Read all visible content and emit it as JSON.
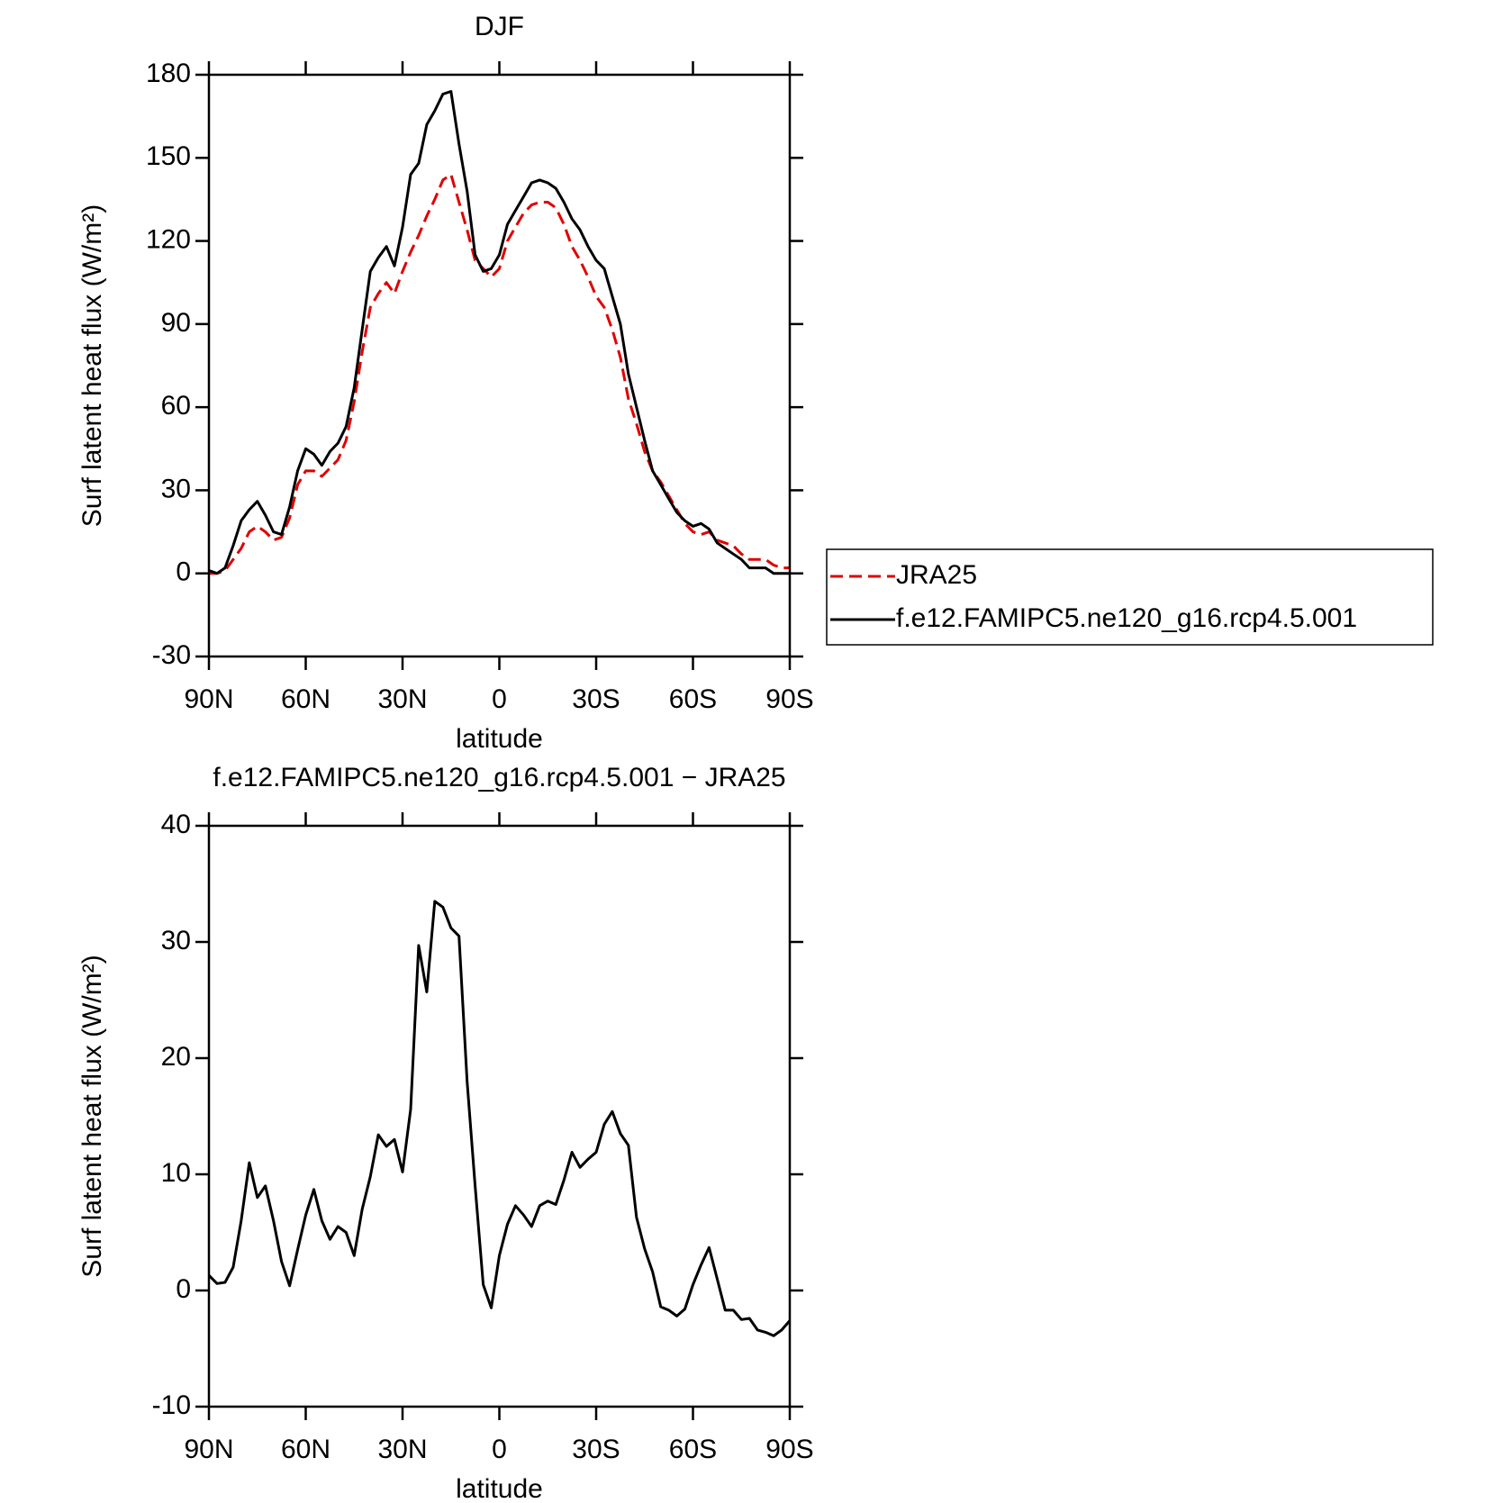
{
  "chart_data": [
    {
      "type": "line",
      "title": "DJF",
      "xlabel": "latitude",
      "ylabel": "Surf latent heat flux (W/m²)",
      "xlim": [
        90,
        -90
      ],
      "xticks": [
        {
          "value": 90,
          "label": "90N"
        },
        {
          "value": 60,
          "label": "60N"
        },
        {
          "value": 30,
          "label": "30N"
        },
        0,
        {
          "value": -30,
          "label": "30S"
        },
        {
          "value": -60,
          "label": "60S"
        },
        {
          "value": -90,
          "label": "90S"
        }
      ],
      "ylim": [
        -30,
        180
      ],
      "yticks": [
        -30,
        0,
        30,
        60,
        90,
        120,
        150,
        180
      ],
      "legend": "right",
      "x": [
        90,
        87.5,
        85,
        82.5,
        80,
        77.5,
        75,
        72.5,
        70,
        67.5,
        65,
        62.5,
        60,
        57.5,
        55,
        52.5,
        50,
        47.5,
        45,
        42.5,
        40,
        37.5,
        35,
        32.5,
        30,
        27.5,
        25,
        22.5,
        20,
        17.5,
        15,
        12.5,
        10,
        7.5,
        5,
        2.5,
        0,
        -2.5,
        -5,
        -7.5,
        -10,
        -12.5,
        -15,
        -17.5,
        -20,
        -22.5,
        -25,
        -27.5,
        -30,
        -32.5,
        -35,
        -37.5,
        -40,
        -42.5,
        -45,
        -47.5,
        -50,
        -52.5,
        -55,
        -57.5,
        -60,
        -62.5,
        -65,
        -67.5,
        -70,
        -72.5,
        -75,
        -77.5,
        -80,
        -82.5,
        -85,
        -87.5,
        -90
      ],
      "series": [
        {
          "name": "JRA25",
          "color": "#e00000",
          "dashed": true,
          "values": [
            0,
            0,
            1,
            5,
            9,
            15,
            17,
            15,
            12,
            13,
            20,
            32,
            37,
            37,
            35,
            38,
            41,
            48,
            62,
            80,
            96,
            101,
            105,
            101,
            109,
            116,
            122,
            129,
            135,
            142,
            144,
            134,
            124,
            113,
            110,
            107,
            110,
            120,
            125,
            130,
            133,
            134,
            134,
            132,
            126,
            118,
            113,
            107,
            100,
            96,
            88,
            78,
            63,
            54,
            44,
            37,
            33,
            28,
            23,
            18,
            15,
            14,
            15,
            12,
            11,
            10,
            7,
            5,
            5,
            5,
            3,
            2,
            2
          ]
        },
        {
          "name": "f.e12.FAMIPC5.ne120_g16.rcp4.5.001",
          "color": "#000000",
          "dashed": false,
          "values": [
            1,
            0,
            2,
            10,
            19,
            23,
            26,
            21,
            15,
            14,
            24,
            37,
            45,
            43,
            39,
            44,
            47,
            53,
            67,
            88,
            109,
            114,
            118,
            111,
            125,
            144,
            148,
            162,
            167,
            173,
            174,
            155,
            138,
            115,
            109,
            110,
            115,
            126,
            131,
            136,
            141,
            142,
            141,
            139,
            134,
            128,
            124,
            118,
            113,
            110,
            100,
            90,
            72,
            60,
            48,
            37,
            32,
            27,
            22,
            19,
            17,
            18,
            16,
            11,
            9,
            7,
            5,
            2,
            2,
            2,
            0,
            0,
            0
          ]
        }
      ]
    },
    {
      "type": "line",
      "title": "f.e12.FAMIPC5.ne120_g16.rcp4.5.001 − JRA25",
      "xlabel": "latitude",
      "ylabel": "Surf latent heat flux (W/m²)",
      "xlim": [
        90,
        -90
      ],
      "xticks": [
        {
          "value": 90,
          "label": "90N"
        },
        {
          "value": 60,
          "label": "60N"
        },
        {
          "value": 30,
          "label": "30N"
        },
        0,
        {
          "value": -30,
          "label": "30S"
        },
        {
          "value": -60,
          "label": "60S"
        },
        {
          "value": -90,
          "label": "90S"
        }
      ],
      "ylim": [
        -10,
        40
      ],
      "yticks": [
        -10,
        0,
        10,
        20,
        30,
        40
      ],
      "x": [
        90,
        87.5,
        85,
        82.5,
        80,
        77.5,
        75,
        72.5,
        70,
        67.5,
        65,
        62.5,
        60,
        57.5,
        55,
        52.5,
        50,
        47.5,
        45,
        42.5,
        40,
        37.5,
        35,
        32.5,
        30,
        27.5,
        25,
        22.5,
        20,
        17.5,
        15,
        12.5,
        10,
        7.5,
        5,
        2.5,
        0,
        -2.5,
        -5,
        -7.5,
        -10,
        -12.5,
        -15,
        -17.5,
        -20,
        -22.5,
        -25,
        -27.5,
        -30,
        -32.5,
        -35,
        -37.5,
        -40,
        -42.5,
        -45,
        -47.5,
        -50,
        -52.5,
        -55,
        -57.5,
        -60,
        -62.5,
        -65,
        -67.5,
        -70,
        -72.5,
        -75,
        -77.5,
        -80,
        -82.5,
        -85,
        -87.5,
        -90
      ],
      "series": [
        {
          "color": "#000000",
          "dashed": false,
          "values": [
            1.3,
            0.6,
            0.7,
            2,
            6,
            11,
            8,
            9,
            6,
            2.5,
            0.4,
            3.5,
            6.5,
            8.7,
            6,
            4.4,
            5.5,
            5,
            3,
            7,
            9.8,
            13.4,
            12.4,
            13,
            10.2,
            15.6,
            29.7,
            25.7,
            33.5,
            33,
            31.2,
            30.5,
            18,
            9,
            0.5,
            -1.5,
            3,
            5.7,
            7.3,
            6.5,
            5.5,
            7.3,
            7.7,
            7.4,
            9.5,
            11.9,
            10.6,
            11.3,
            11.9,
            14.3,
            15.4,
            13.5,
            12.5,
            6.3,
            3.6,
            1.6,
            -1.4,
            -1.7,
            -2.2,
            -1.6,
            0.5,
            2.2,
            3.7,
            1,
            -1.7,
            -1.7,
            -2.5,
            -2.4,
            -3.4,
            -3.6,
            -3.9,
            -3.4,
            -2.6
          ]
        }
      ]
    }
  ]
}
